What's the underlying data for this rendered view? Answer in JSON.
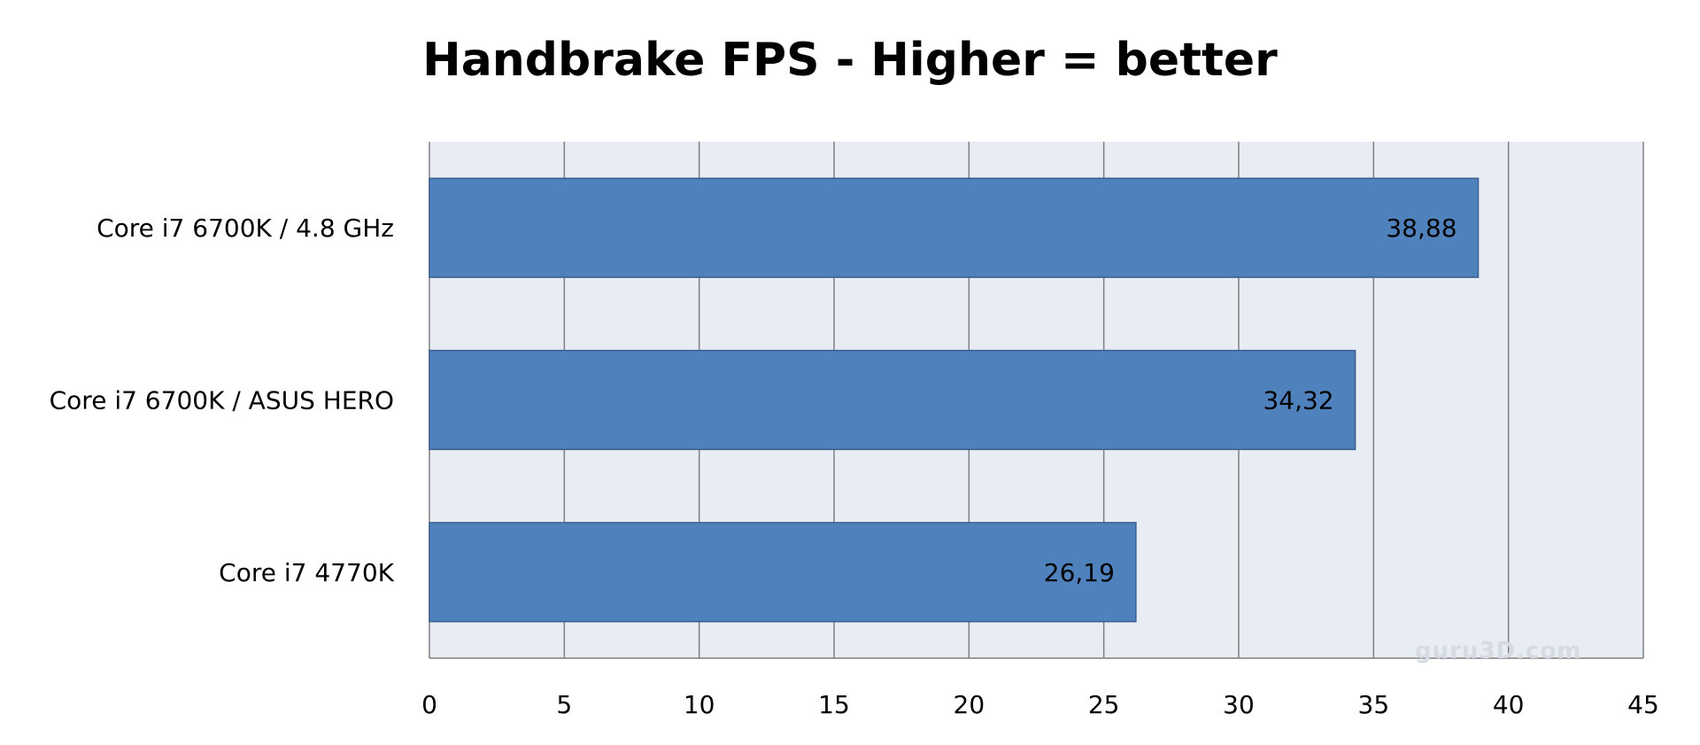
{
  "chart_data": {
    "type": "bar",
    "orientation": "horizontal",
    "title": "Handbrake FPS - Higher = better",
    "categories": [
      "Core i7 6700K / 4.8 GHz",
      "Core i7 6700K / ASUS HERO",
      "Core i7 4770K"
    ],
    "values": [
      38.88,
      34.32,
      26.19
    ],
    "value_labels": [
      "38,88",
      "34,32",
      "26,19"
    ],
    "xlim": [
      0,
      45
    ],
    "x_ticks": [
      0,
      5,
      10,
      15,
      20,
      25,
      30,
      35,
      40,
      45
    ],
    "grid": true,
    "colors": {
      "bar": "#4f81bd",
      "plot_background": "#e8edf4",
      "grid": "#808080"
    }
  },
  "watermark": "guru3D.com"
}
